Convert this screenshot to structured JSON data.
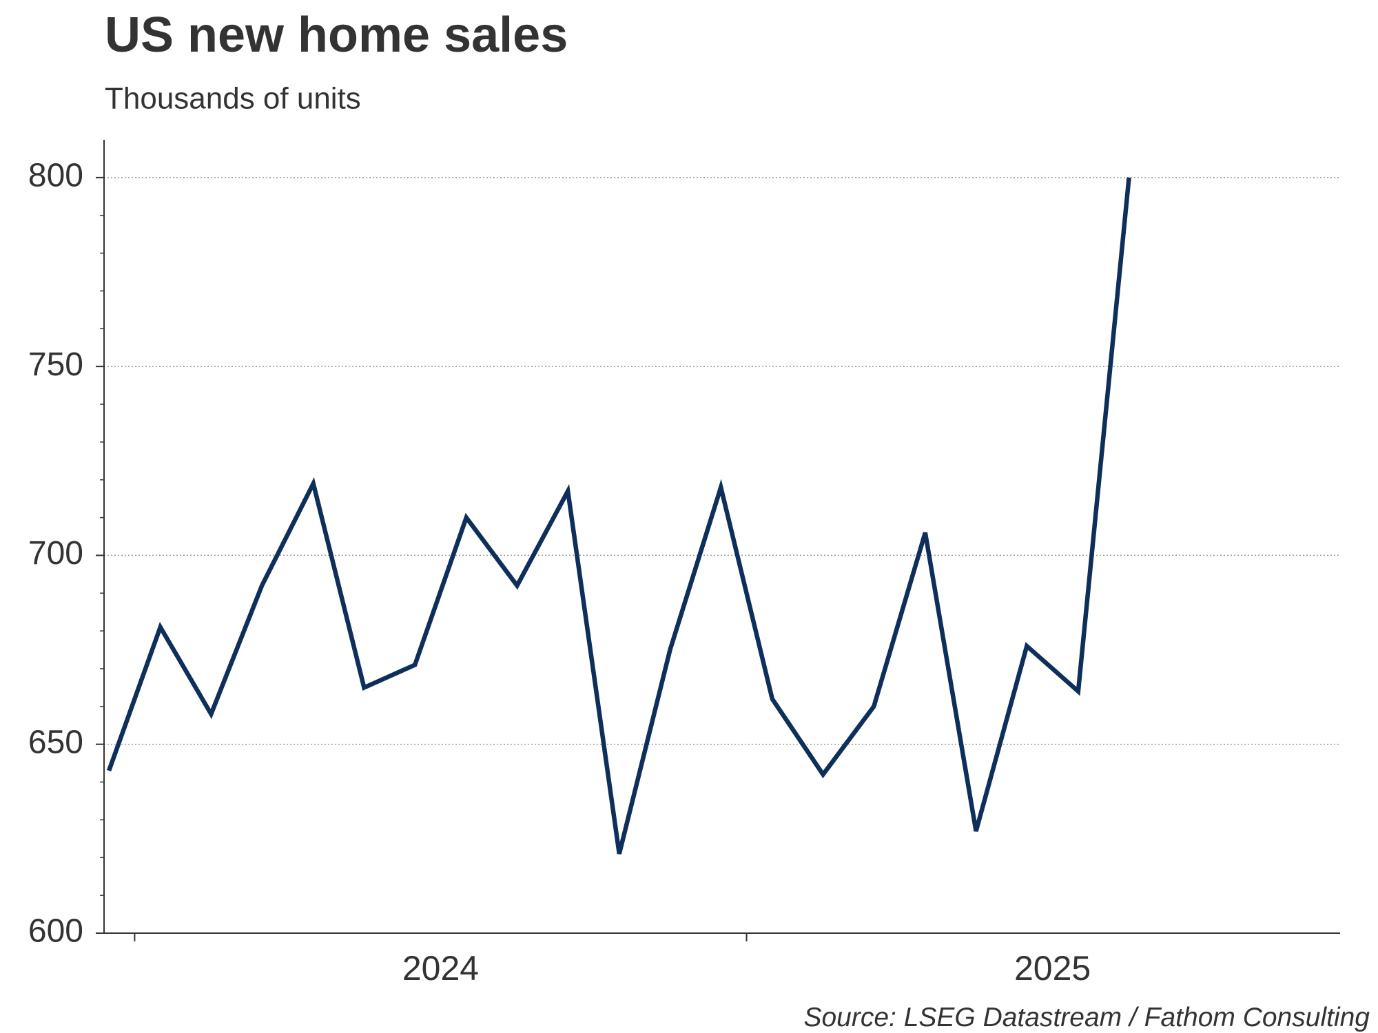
{
  "chart_data": {
    "type": "line",
    "title": "US new home sales",
    "subtitle": "Thousands of units",
    "source": "Source: LSEG Datastream / Fathom Consulting",
    "x": [
      2023.958,
      2024.042,
      2024.125,
      2024.208,
      2024.292,
      2024.375,
      2024.458,
      2024.542,
      2024.625,
      2024.708,
      2024.792,
      2024.875,
      2024.958,
      2025.042,
      2025.125,
      2025.208,
      2025.292,
      2025.375,
      2025.458,
      2025.542,
      2025.625
    ],
    "series": [
      {
        "name": "US new home sales",
        "color": "#0d2f5a",
        "values": [
          643,
          681,
          658,
          692,
          719,
          665,
          671,
          710,
          692,
          717,
          621,
          675,
          718,
          662,
          642,
          660,
          706,
          627,
          676,
          664,
          800
        ]
      }
    ],
    "xlim": [
      2023.95,
      2025.97
    ],
    "xticks": [
      {
        "value": 2024.5,
        "label": "2024"
      },
      {
        "value": 2025.5,
        "label": "2025"
      }
    ],
    "xminorticks": [
      2024,
      2025
    ],
    "ylim": [
      600,
      810
    ],
    "yticks": [
      600,
      650,
      700,
      750,
      800
    ],
    "yminorticks": [
      610,
      620,
      630,
      640,
      660,
      670,
      680,
      690,
      710,
      720,
      730,
      740,
      760,
      770,
      780,
      790
    ],
    "grid": true
  }
}
